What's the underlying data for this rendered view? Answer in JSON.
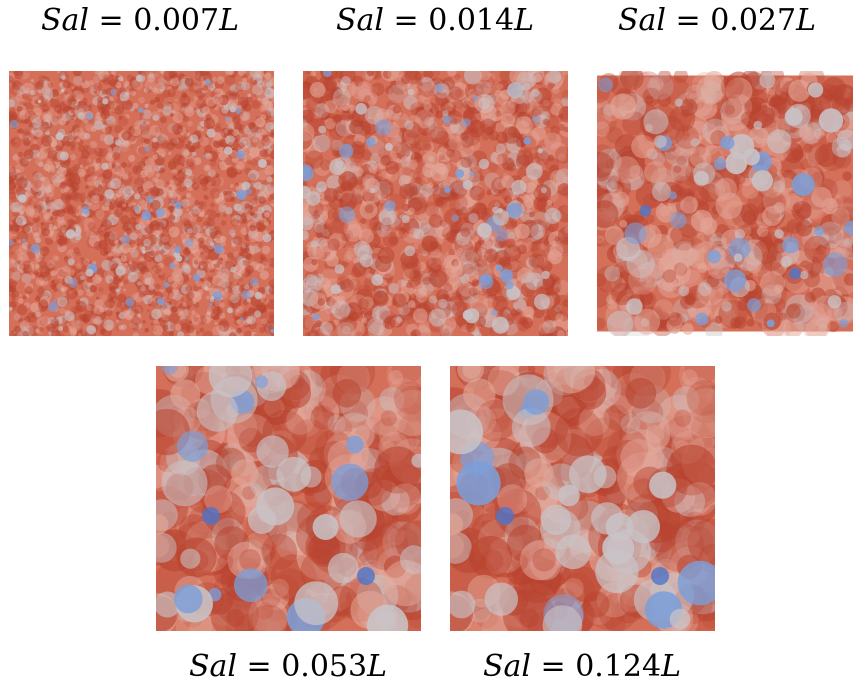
{
  "panels": [
    {
      "label_var": "Sal",
      "label_eq": " = ",
      "label_val": "0.007",
      "label_unit": "L"
    },
    {
      "label_var": "Sal",
      "label_eq": " = ",
      "label_val": "0.014",
      "label_unit": "L"
    },
    {
      "label_var": "Sal",
      "label_eq": " = ",
      "label_val": "0.027",
      "label_unit": "L"
    },
    {
      "label_var": "Sal",
      "label_eq": " = ",
      "label_val": "0.053",
      "label_unit": "L"
    },
    {
      "label_var": "Sal",
      "label_eq": " = ",
      "label_val": "0.124",
      "label_unit": "L"
    }
  ],
  "colors": {
    "base_red": "#d4705a",
    "dark_red": "#b8432f",
    "light_tan": "#e4a89a",
    "grey_patch": "#c9c3c7",
    "blue_patch": "#7c9ed8",
    "deep_blue": "#4f74c8"
  }
}
